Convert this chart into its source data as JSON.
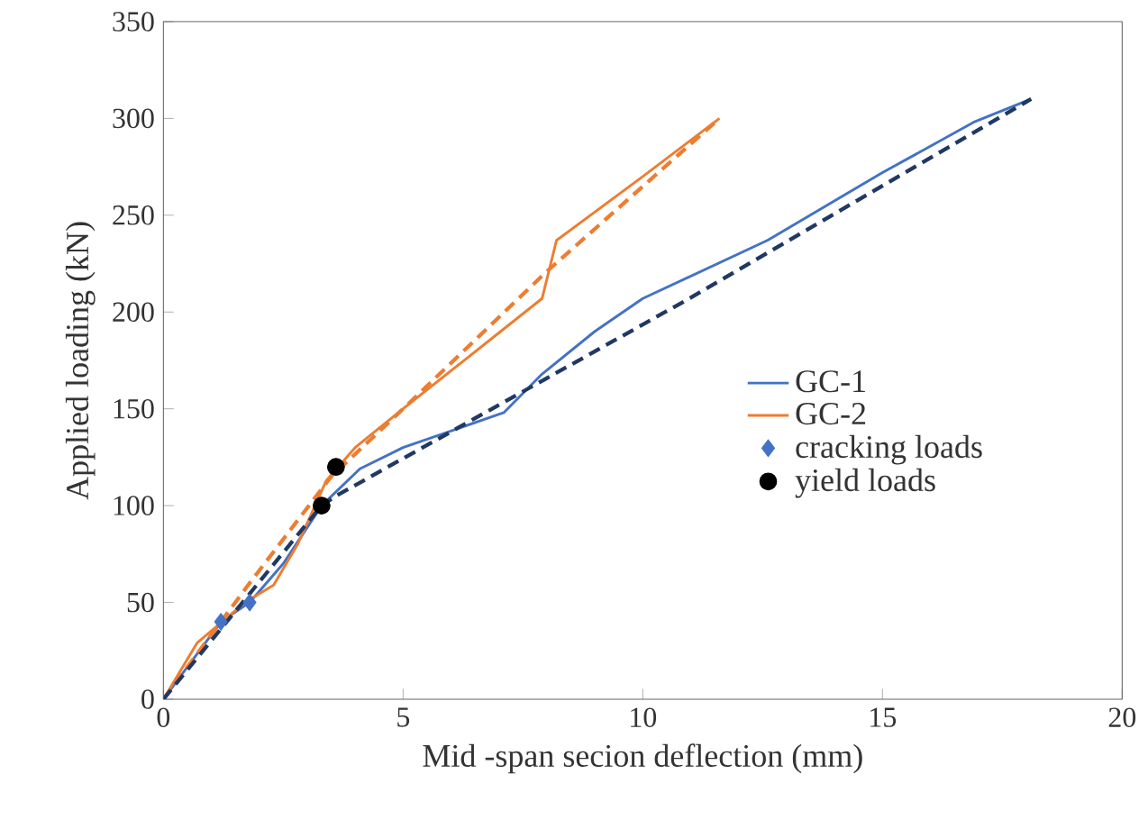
{
  "chart_data": {
    "type": "line",
    "xlabel": "Mid -span secion deflection (mm)",
    "ylabel": "Applied loading (kN)",
    "xlim": [
      0,
      20
    ],
    "xticks": [
      0,
      5,
      10,
      15,
      20
    ],
    "ylim": [
      0,
      350
    ],
    "yticks": [
      0,
      50,
      100,
      150,
      200,
      250,
      300,
      350
    ],
    "grid": false,
    "legend": "right",
    "marker": "none",
    "line_style": "solid",
    "series": [
      {
        "name": "GC-1",
        "color": "#4472c4",
        "x": [
          0,
          1.2,
          1.8,
          2.5,
          3.3,
          4.1,
          5,
          7.1,
          7.9,
          9,
          10,
          12.6,
          15,
          16.9,
          18.1
        ],
        "values": [
          0,
          40,
          50,
          70,
          100,
          119,
          130,
          148,
          168,
          190,
          207,
          237,
          272,
          298,
          310
        ]
      },
      {
        "name": "GC-2",
        "color": "#ed7d31",
        "x": [
          0,
          0.7,
          1.7,
          2.3,
          2.8,
          3.4,
          4,
          5,
          7.9,
          8.2,
          10,
          11.6
        ],
        "values": [
          0,
          29,
          50,
          59,
          80,
          113,
          130,
          150,
          207,
          237,
          270,
          300
        ]
      },
      {
        "name": "cracking loads",
        "type": "scatter",
        "marker": "diamond",
        "color": "#4472c4",
        "x": [
          1.2,
          1.8
        ],
        "values": [
          40,
          50
        ]
      },
      {
        "name": "yield loads",
        "type": "scatter",
        "marker": "circle",
        "color": "#000000",
        "x": [
          3.3,
          3.6
        ],
        "values": [
          100,
          120
        ]
      },
      {
        "type": "line",
        "color": "#ed7d31",
        "line_style": "dashed",
        "x": [
          0,
          1.8,
          3.5,
          5,
          8,
          11.6
        ],
        "values": [
          0,
          60,
          115,
          150,
          221,
          300
        ]
      },
      {
        "type": "line",
        "color": "#203864",
        "line_style": "dashed",
        "x": [
          0,
          3.3,
          3.6,
          7,
          10.9,
          18.1
        ],
        "values": [
          0,
          100,
          105,
          152,
          206,
          310
        ]
      }
    ]
  }
}
